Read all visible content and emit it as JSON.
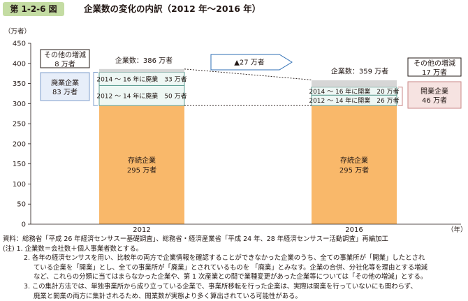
{
  "header": {
    "figure_number": "第 1-2-6 図",
    "title": "企業数の変化の内訳（2012 年〜2016 年）"
  },
  "chart_data": {
    "type": "bar",
    "stacked": true,
    "categories": [
      "2012",
      "2016"
    ],
    "xlabel": "（年）",
    "ylabel": "（万者）",
    "ylim": [
      0,
      450
    ],
    "yticks": [
      0,
      50,
      100,
      150,
      200,
      250,
      300,
      350,
      400,
      450
    ],
    "grid": false,
    "colors": {
      "existing": "#f9b86a",
      "changes": "#eef7f4",
      "others": "#d6d6d6",
      "border": "#5f9f94",
      "closure_box": "#e7eef9",
      "closure_border": "#7f9fcc",
      "opening_box": "#f6e3e1",
      "opening_border": "#c98787",
      "arrow": "#2f6fb5"
    },
    "bars": [
      {
        "category": "2012",
        "total": 386,
        "total_label": "企業数：386 万者",
        "segments": [
          {
            "value": 295,
            "label": "存続企業",
            "value_label": "295 万者",
            "kind": "existing"
          },
          {
            "value": 50,
            "label": "2012 〜 14 年に廃業　50 万者",
            "kind": "change"
          },
          {
            "value": 33,
            "label": "2014 〜 16 年に廃業　33 万者",
            "kind": "change"
          },
          {
            "value": 8,
            "label": "",
            "kind": "other"
          }
        ]
      },
      {
        "category": "2016",
        "total": 359,
        "total_label": "企業数：359 万者",
        "segments": [
          {
            "value": 295,
            "label": "存続企業",
            "value_label": "295 万者",
            "kind": "existing"
          },
          {
            "value": 26,
            "label": "2012 〜 14 年に開業　26 万者",
            "kind": "change"
          },
          {
            "value": 20,
            "label": "2014 〜 16 年に開業　20 万者",
            "kind": "change"
          },
          {
            "value": 17,
            "label": "",
            "kind": "other"
          }
        ]
      }
    ],
    "callouts": {
      "others_2012": {
        "line1": "その他の増減",
        "line2": "8 万者"
      },
      "closures_2012": {
        "line1": "廃業企業",
        "line2": "83 万者"
      },
      "others_2016": {
        "line1": "その他の増減",
        "line2": "17 万者"
      },
      "openings_2016": {
        "line1": "開業企業",
        "line2": "46 万者"
      }
    },
    "change_label": "▲27 万者"
  },
  "notes": {
    "source": "資料：総務省「平成 26 年経済センサスー基礎調査」、総務省・経済産業省「平成 24 年、28 年経済センサスー活動調査」再編加工",
    "note1": "(注) 1. 企業数＝会社数＋個人事業者数とする。",
    "note2_a": "2. 各年の経済センサスを用い、比較年の両方で企業情報を確認することができなかった企業のうち、全ての事業所が「開業」したとされ",
    "note2_b": "ている企業を「開業」とし、全ての事業所が「廃業」とされているものを 「廃業」とみなす。企業の合併、分社化等を理由とする増減",
    "note2_c": "など、これらの分類に当てはまらなかった企業や、第 1 次産業との間で業種変更があった企業等については「その他の増減」とする。",
    "note3_a": "3. この集計方法では、単独事業所から成り立っている企業で、事業所移転を行った企業は、実際は開業を行っていないにも関わらず、",
    "note3_b": "廃業と開業の両方に集計されるため、開業数が実態より多く算出されている可能性がある。"
  }
}
